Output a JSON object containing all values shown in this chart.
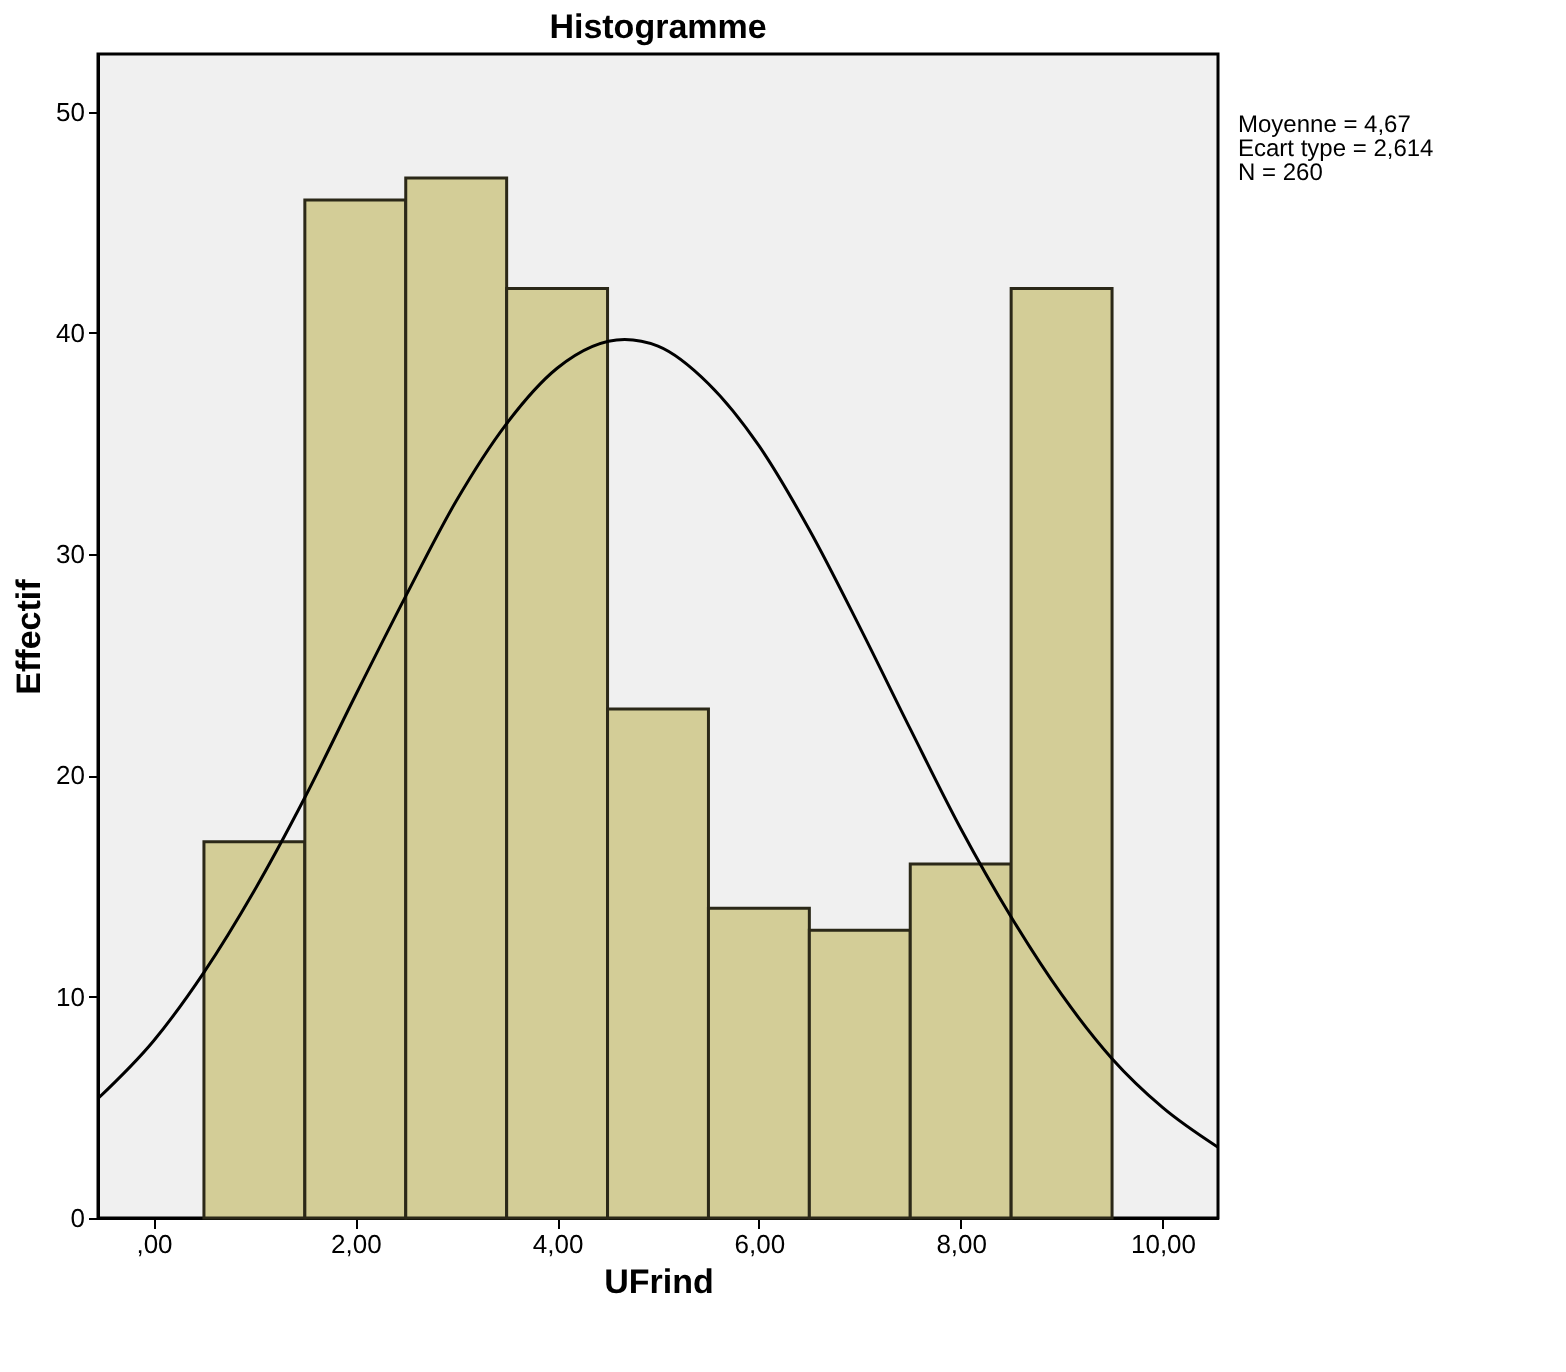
{
  "chart_data": {
    "type": "histogram",
    "title": "Histogramme",
    "xlabel": "UFrind",
    "ylabel": "Effectif",
    "bins": [
      0.5,
      1.5,
      2.5,
      3.5,
      4.5,
      5.5,
      6.5,
      7.5,
      8.5,
      9.5
    ],
    "values": [
      17,
      46,
      47,
      42,
      23,
      14,
      13,
      16,
      42
    ],
    "color": "#d3cd97",
    "series": [
      {
        "type": "line",
        "color": "#000000",
        "x": [
          -0.55,
          0,
          0.5,
          1,
          1.5,
          2,
          2.5,
          3,
          3.5,
          4,
          4.67,
          5,
          5.5,
          6,
          6.5,
          7,
          7.5,
          8,
          8.5,
          9,
          9.5,
          10,
          10.55
        ],
        "values": [
          5.4,
          8.0,
          11.1,
          14.8,
          19.0,
          23.6,
          28.1,
          32.4,
          35.9,
          38.4,
          39.7,
          39.4,
          37.7,
          34.9,
          31.1,
          26.7,
          22.1,
          17.6,
          13.6,
          10.1,
          7.2,
          5.0,
          3.2
        ]
      }
    ],
    "xlim": [
      -0.55,
      10.55
    ],
    "ylim": [
      0,
      52.6
    ],
    "xticks": [
      {
        "value": 0,
        "label": ",00"
      },
      {
        "value": 2,
        "label": "2,00"
      },
      {
        "value": 4,
        "label": "4,00"
      },
      {
        "value": 6,
        "label": "6,00"
      },
      {
        "value": 8,
        "label": "8,00"
      },
      {
        "value": 10,
        "label": "10,00"
      }
    ],
    "yticks": [
      0,
      10,
      20,
      30,
      40,
      50
    ],
    "annotations": [
      "Moyenne = 4,67",
      "Ecart type = 2,614",
      "N = 260"
    ]
  }
}
